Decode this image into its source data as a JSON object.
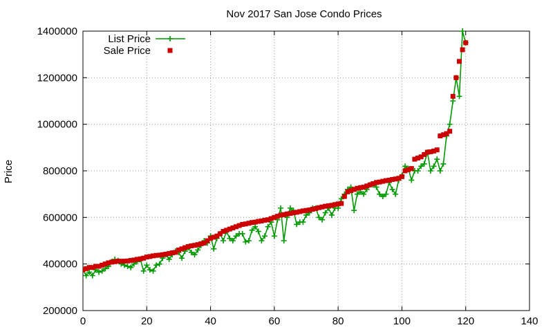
{
  "chart_data": {
    "type": "line",
    "title": "Nov 2017 San Jose Condo Prices",
    "xlabel": "",
    "ylabel": "Price",
    "xlim": [
      0,
      140
    ],
    "ylim": [
      200000,
      1400000
    ],
    "xticks": [
      0,
      20,
      40,
      60,
      80,
      100,
      120,
      140
    ],
    "yticks": [
      200000,
      400000,
      600000,
      800000,
      1000000,
      1200000,
      1400000
    ],
    "grid": true,
    "legend_position": "top-left",
    "series": [
      {
        "name": "List Price",
        "style": "line-with-plus-markers",
        "color": "#009900",
        "x": [
          0,
          1,
          2,
          3,
          4,
          5,
          6,
          7,
          8,
          9,
          10,
          11,
          12,
          13,
          14,
          15,
          16,
          17,
          18,
          19,
          20,
          21,
          22,
          23,
          24,
          25,
          26,
          27,
          28,
          29,
          30,
          31,
          32,
          33,
          34,
          35,
          36,
          37,
          38,
          39,
          40,
          41,
          42,
          43,
          44,
          45,
          46,
          47,
          48,
          49,
          50,
          51,
          52,
          53,
          54,
          55,
          56,
          57,
          58,
          59,
          60,
          61,
          62,
          63,
          64,
          65,
          66,
          67,
          68,
          69,
          70,
          71,
          72,
          73,
          74,
          75,
          76,
          77,
          78,
          79,
          80,
          81,
          82,
          83,
          84,
          85,
          86,
          87,
          88,
          89,
          90,
          91,
          92,
          93,
          94,
          95,
          96,
          97,
          98,
          99,
          100,
          101,
          102,
          103,
          104,
          105,
          106,
          107,
          108,
          109,
          110,
          111,
          112,
          113,
          114,
          115,
          116,
          117,
          118,
          119,
          120
        ],
        "values": [
          375000,
          350000,
          365000,
          350000,
          375000,
          365000,
          370000,
          380000,
          390000,
          410000,
          420000,
          415000,
          400000,
          395000,
          390000,
          385000,
          400000,
          410000,
          420000,
          370000,
          395000,
          375000,
          370000,
          395000,
          400000,
          425000,
          440000,
          420000,
          440000,
          455000,
          450000,
          425000,
          455000,
          470000,
          450000,
          440000,
          460000,
          480000,
          500000,
          490000,
          520000,
          465000,
          510000,
          530000,
          500000,
          540000,
          510000,
          500000,
          520000,
          530000,
          530000,
          495000,
          500000,
          545000,
          560000,
          540000,
          500000,
          520000,
          560000,
          580000,
          520000,
          590000,
          640000,
          500000,
          600000,
          640000,
          630000,
          570000,
          580000,
          580000,
          610000,
          620000,
          640000,
          640000,
          600000,
          590000,
          620000,
          640000,
          610000,
          640000,
          640000,
          680000,
          700000,
          720000,
          730000,
          630000,
          700000,
          710000,
          700000,
          720000,
          740000,
          740000,
          730000,
          700000,
          690000,
          700000,
          750000,
          720000,
          700000,
          760000,
          780000,
          820000,
          810000,
          760000,
          800000,
          800000,
          820000,
          830000,
          880000,
          800000,
          820000,
          850000,
          800000,
          830000,
          950000,
          1000000,
          1100000,
          1200000,
          1120000,
          1400000,
          1350000
        ]
      },
      {
        "name": "Sale Price",
        "style": "square-markers",
        "color": "#cc0000",
        "x": [
          0,
          1,
          2,
          3,
          4,
          5,
          6,
          7,
          8,
          9,
          10,
          11,
          12,
          13,
          14,
          15,
          16,
          17,
          18,
          19,
          20,
          21,
          22,
          23,
          24,
          25,
          26,
          27,
          28,
          29,
          30,
          31,
          32,
          33,
          34,
          35,
          36,
          37,
          38,
          39,
          40,
          41,
          42,
          43,
          44,
          45,
          46,
          47,
          48,
          49,
          50,
          51,
          52,
          53,
          54,
          55,
          56,
          57,
          58,
          59,
          60,
          61,
          62,
          63,
          64,
          65,
          66,
          67,
          68,
          69,
          70,
          71,
          72,
          73,
          74,
          75,
          76,
          77,
          78,
          79,
          80,
          81,
          82,
          83,
          84,
          85,
          86,
          87,
          88,
          89,
          90,
          91,
          92,
          93,
          94,
          95,
          96,
          97,
          98,
          99,
          100,
          101,
          102,
          103,
          104,
          105,
          106,
          107,
          108,
          109,
          110,
          111,
          112,
          113,
          114,
          115,
          116,
          117,
          118,
          119,
          120
        ],
        "values": [
          375000,
          380000,
          385000,
          385000,
          390000,
          390000,
          395000,
          400000,
          405000,
          408000,
          410000,
          412000,
          412000,
          412000,
          413000,
          415000,
          417000,
          420000,
          422000,
          425000,
          430000,
          432000,
          435000,
          437000,
          438000,
          440000,
          442000,
          445000,
          448000,
          450000,
          460000,
          465000,
          470000,
          475000,
          478000,
          480000,
          483000,
          487000,
          490000,
          500000,
          510000,
          515000,
          520000,
          530000,
          540000,
          545000,
          550000,
          555000,
          560000,
          565000,
          570000,
          572000,
          575000,
          578000,
          580000,
          583000,
          585000,
          588000,
          590000,
          595000,
          600000,
          605000,
          610000,
          612000,
          615000,
          617000,
          620000,
          622000,
          625000,
          628000,
          630000,
          632000,
          635000,
          638000,
          642000,
          645000,
          648000,
          650000,
          652000,
          655000,
          658000,
          660000,
          690000,
          710000,
          715000,
          720000,
          725000,
          728000,
          730000,
          735000,
          740000,
          745000,
          750000,
          752000,
          755000,
          758000,
          760000,
          763000,
          765000,
          768000,
          775000,
          800000,
          805000,
          810000,
          850000,
          855000,
          860000,
          870000,
          880000,
          882000,
          885000,
          890000,
          950000,
          955000,
          960000,
          970000,
          1120000,
          1200000,
          1270000,
          1320000,
          1350000
        ]
      }
    ]
  }
}
